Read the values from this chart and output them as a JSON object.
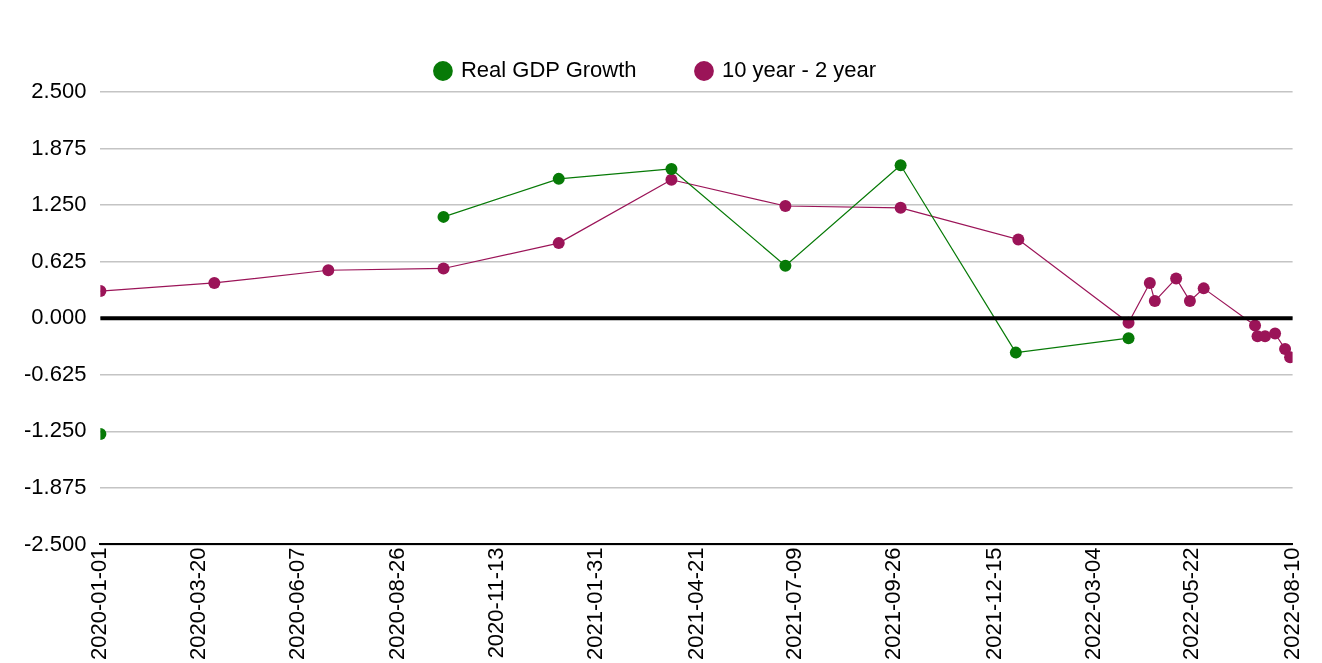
{
  "chart_data": {
    "type": "line",
    "xlim": [
      "2020-01-01",
      "2022-08-10"
    ],
    "xticks": [
      "2020-01-01",
      "2020-03-20",
      "2020-06-07",
      "2020-08-26",
      "2020-11-13",
      "2021-01-31",
      "2021-04-21",
      "2021-07-09",
      "2021-09-26",
      "2021-12-15",
      "2022-03-04",
      "2022-05-22",
      "2022-08-10"
    ],
    "ylim": [
      -2.5,
      2.5
    ],
    "yticks": [
      {
        "value": -2.5,
        "label": "-2.500"
      },
      {
        "value": -1.875,
        "label": "-1.875"
      },
      {
        "value": -1.25,
        "label": "-1.250"
      },
      {
        "value": -0.625,
        "label": "-0.625"
      },
      {
        "value": 0,
        "label": "0.000"
      },
      {
        "value": 0.625,
        "label": "0.625"
      },
      {
        "value": 1.25,
        "label": "1.250"
      },
      {
        "value": 1.875,
        "label": "1.875"
      },
      {
        "value": 2.5,
        "label": "2.500"
      }
    ],
    "series": [
      {
        "name": "Real GDP Growth",
        "color": "#077a07",
        "x": [
          "2020-01-01",
          "2020-04-01",
          "2020-07-01",
          "2020-10-01",
          "2021-01-01",
          "2021-04-01",
          "2021-07-01",
          "2021-10-01",
          "2022-01-01",
          "2022-04-01"
        ],
        "values": [
          -1.28,
          null,
          null,
          1.12,
          1.54,
          1.65,
          0.58,
          1.69,
          -0.38,
          -0.22
        ]
      },
      {
        "name": "10 year - 2 year",
        "color": "#9b1458",
        "x": [
          "2020-01-01",
          "2020-04-01",
          "2020-07-01",
          "2020-10-01",
          "2021-01-01",
          "2021-04-01",
          "2021-07-01",
          "2021-10-01",
          "2022-01-03",
          "2022-04-01",
          "2022-04-18",
          "2022-04-22",
          "2022-05-09",
          "2022-05-20",
          "2022-05-31",
          "2022-07-11",
          "2022-07-13",
          "2022-07-19",
          "2022-07-26",
          "2022-07-27",
          "2022-08-04",
          "2022-08-08"
        ],
        "values": [
          0.3,
          0.39,
          0.53,
          0.55,
          0.83,
          1.53,
          1.24,
          1.22,
          0.87,
          -0.05,
          0.39,
          0.19,
          0.44,
          0.19,
          0.33,
          -0.08,
          -0.2,
          -0.2,
          null,
          -0.17,
          -0.34,
          -0.43
        ]
      }
    ],
    "ref_lines": [
      {
        "axis": "y",
        "value": 0,
        "color": "#000000"
      }
    ],
    "grid": "y",
    "legend": "top",
    "marker": "circle",
    "line_style": "solid"
  }
}
